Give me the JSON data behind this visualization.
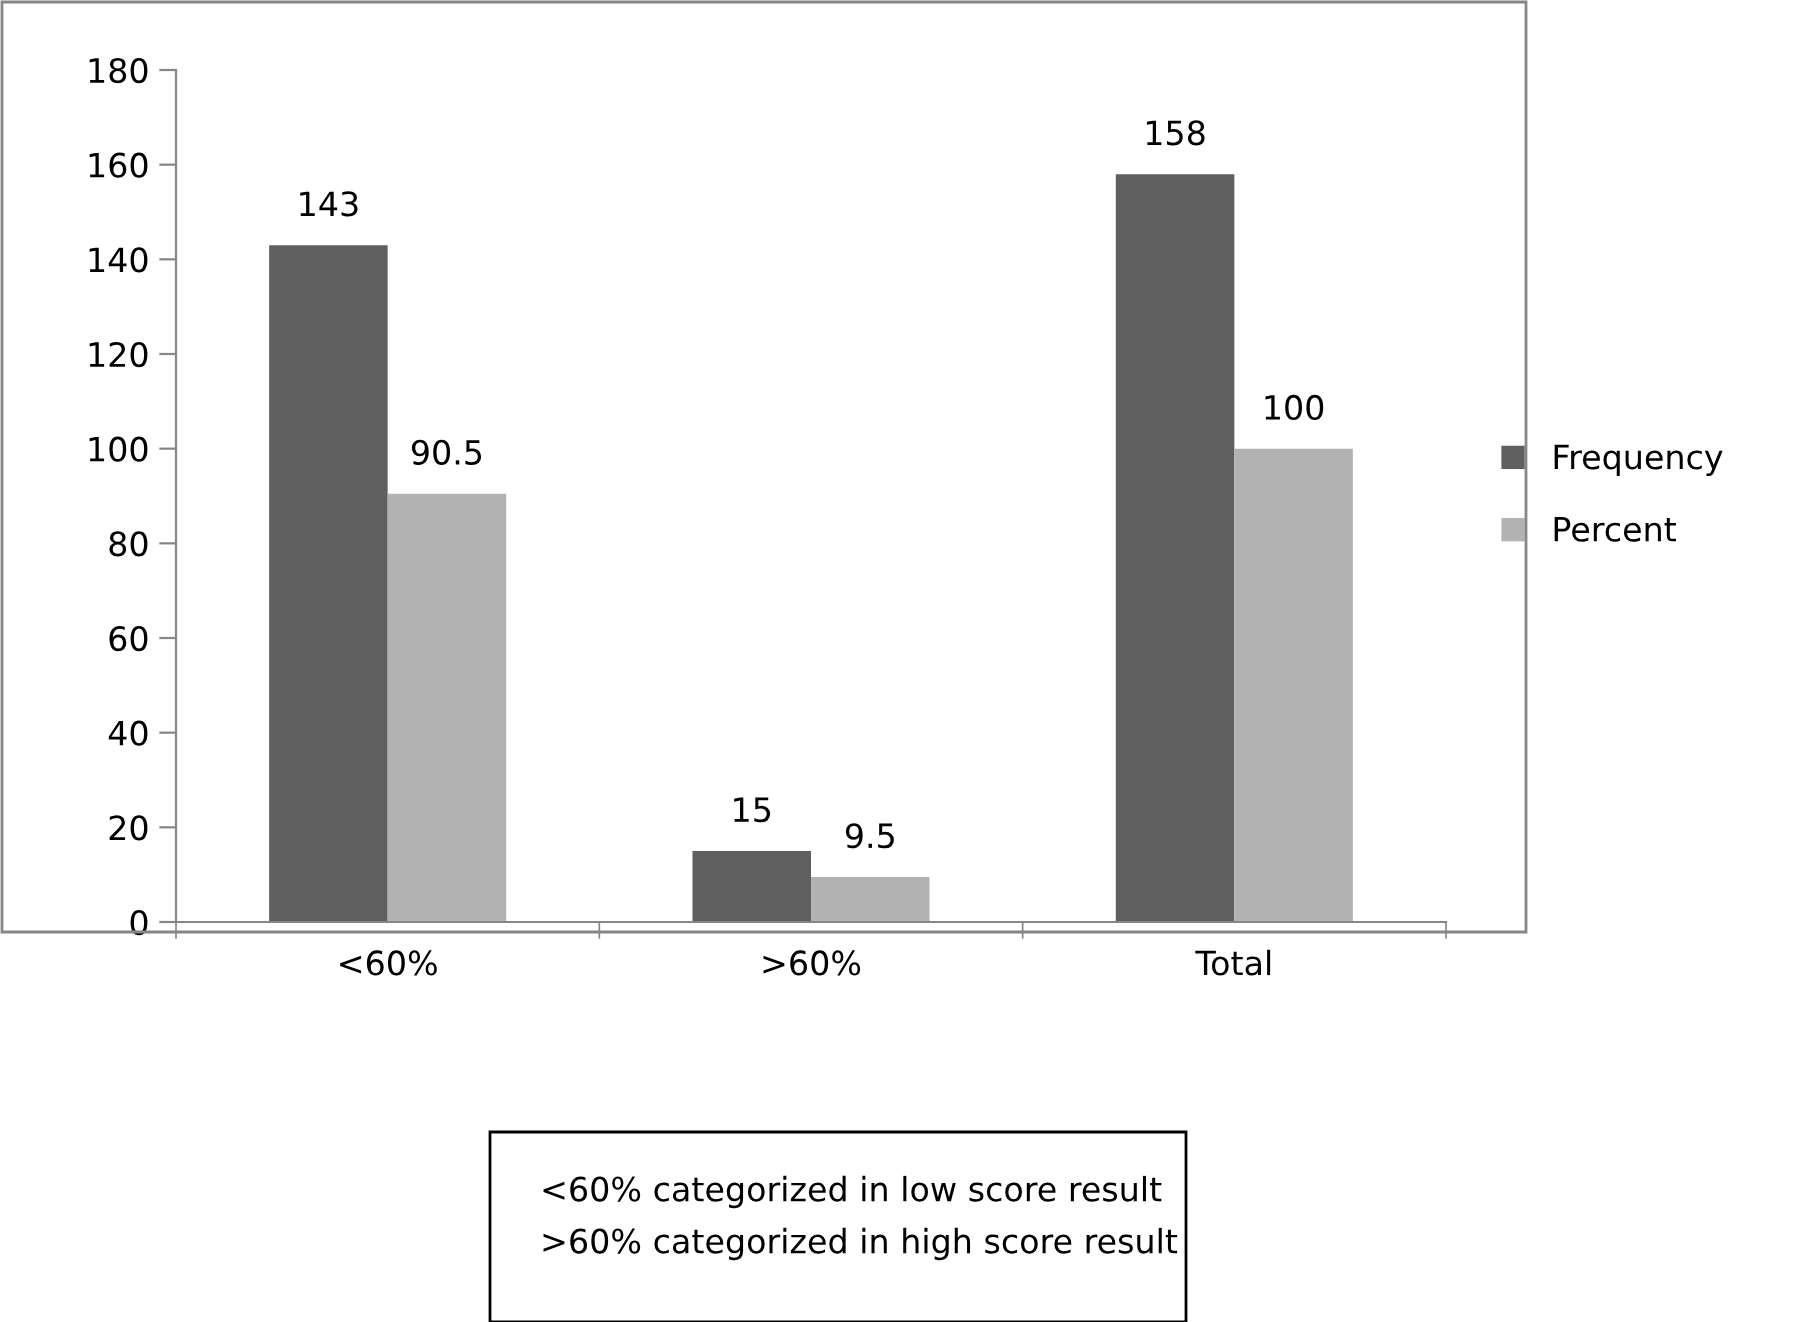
{
  "chart_data": {
    "type": "bar",
    "categories": [
      "<60%",
      ">60%",
      "Total"
    ],
    "series": [
      {
        "name": "Frequency",
        "color": "#5f5f5f",
        "values": [
          143,
          15,
          158
        ]
      },
      {
        "name": "Percent",
        "color": "#b2b2b2",
        "values": [
          90.5,
          9.5,
          100
        ]
      }
    ],
    "ylim": [
      0,
      180
    ],
    "yticks": [
      0,
      20,
      40,
      60,
      80,
      100,
      120,
      140,
      160,
      180
    ],
    "data_labels": true,
    "legend": "right",
    "grid": false,
    "annotations": [
      "<60% categorized in low score result",
      ">60% categorized in high score result"
    ]
  }
}
